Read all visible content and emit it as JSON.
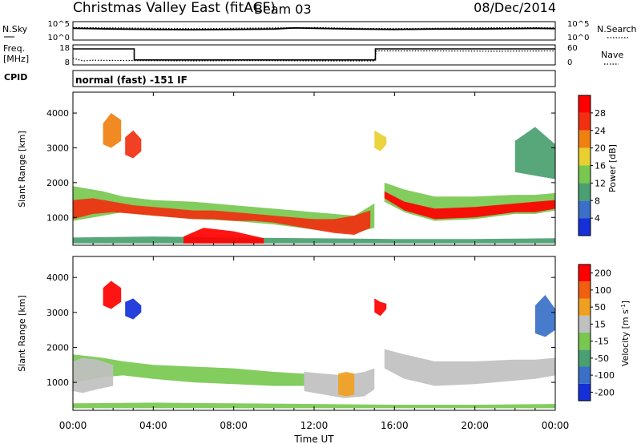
{
  "header": {
    "title": "Christmas Valley East (fitACF)",
    "beam": "Beam 03",
    "date": "08/Dec/2014"
  },
  "chart_data": [
    {
      "type": "line",
      "name": "noise",
      "left_label": "N.Sky",
      "right_label": "N.Search",
      "left_ticks": [
        "10^5",
        "10^0"
      ],
      "right_ticks": [
        "10^5",
        "10^0"
      ],
      "series": [
        {
          "name": "N.Sky",
          "style": "solid",
          "x": [
            0,
            1,
            2,
            4,
            6,
            8,
            10,
            11,
            12,
            14,
            16,
            18,
            20,
            22,
            23,
            24
          ],
          "values": [
            3.2,
            3.1,
            3.0,
            2.9,
            2.8,
            2.9,
            3.0,
            3.3,
            3.2,
            3.0,
            2.9,
            3.0,
            3.0,
            3.1,
            3.2,
            3.1
          ]
        },
        {
          "name": "N.Search",
          "style": "dotted",
          "x": [
            0,
            2,
            4,
            6,
            8,
            10,
            12,
            14,
            16,
            18,
            20,
            22,
            24
          ],
          "values": [
            3.4,
            3.3,
            3.2,
            3.1,
            3.2,
            3.3,
            3.4,
            3.2,
            3.1,
            3.2,
            3.3,
            3.4,
            3.3
          ]
        }
      ]
    },
    {
      "type": "line",
      "name": "frequency-nave",
      "left_label": "Freq. [MHz]",
      "right_label": "Nave",
      "left_ticks": [
        "18",
        "8"
      ],
      "right_ticks": [
        "60",
        "0"
      ],
      "series": [
        {
          "name": "Freq.",
          "style": "solid",
          "x": [
            0,
            3.05,
            3.05,
            15.05,
            15.05,
            24
          ],
          "values": [
            16,
            16,
            10.5,
            10.5,
            16,
            16
          ]
        },
        {
          "name": "Nave",
          "style": "dotted",
          "x": [
            0,
            0.5,
            1,
            3,
            6,
            9,
            12,
            15,
            15.1,
            18,
            21,
            24
          ],
          "values": [
            20,
            12,
            14,
            13,
            12,
            13,
            12,
            12,
            42,
            42,
            41,
            42
          ]
        }
      ]
    },
    {
      "type": "table",
      "name": "cpid",
      "label": "CPID",
      "text": "normal (fast) -151 IF"
    },
    {
      "type": "heatmap",
      "name": "power",
      "ylabel": "Slant Range [km]",
      "yticks": [
        1000,
        2000,
        3000,
        4000
      ],
      "ylim": [
        200,
        4600
      ],
      "colorbar_label": "Power [dB]",
      "colorbar_ticks": [
        "4",
        "8",
        "12",
        "16",
        "20",
        "24",
        "28"
      ],
      "colors": [
        "#1530d8",
        "#3a70c8",
        "#4aa070",
        "#78c850",
        "#e8d030",
        "#f08010",
        "#f03010",
        "#ff0000"
      ],
      "bands": [
        {
          "x": [
            0,
            1.5,
            2.5,
            4,
            6,
            8,
            10,
            12,
            14,
            15
          ],
          "low": [
            900,
            1050,
            1150,
            1050,
            950,
            900,
            800,
            650,
            550,
            700
          ],
          "high": [
            1900,
            1750,
            1600,
            1500,
            1450,
            1350,
            1250,
            1150,
            1050,
            1400
          ],
          "level": 3
        },
        {
          "x": [
            0,
            1,
            2,
            3,
            4,
            5,
            6,
            7,
            8,
            9,
            10,
            11,
            12,
            13,
            14,
            14.8
          ],
          "low": [
            950,
            1100,
            1150,
            1100,
            1050,
            1000,
            950,
            950,
            900,
            900,
            850,
            750,
            650,
            550,
            500,
            700
          ],
          "high": [
            1500,
            1550,
            1450,
            1350,
            1300,
            1250,
            1200,
            1200,
            1150,
            1100,
            1050,
            1000,
            950,
            950,
            1050,
            1200
          ],
          "level": 6
        },
        {
          "x": [
            15.5,
            16.5,
            18,
            20,
            22,
            23,
            24
          ],
          "low": [
            1450,
            1150,
            900,
            950,
            1100,
            1100,
            1200
          ],
          "high": [
            2000,
            1800,
            1600,
            1600,
            1650,
            1650,
            1700
          ],
          "level": 3
        },
        {
          "x": [
            15.5,
            16.5,
            18,
            20,
            22,
            23,
            24
          ],
          "low": [
            1550,
            1200,
            950,
            1000,
            1150,
            1150,
            1250
          ],
          "high": [
            1750,
            1450,
            1250,
            1300,
            1400,
            1450,
            1500
          ],
          "level": 7
        },
        {
          "x": [
            2.6,
            3.0,
            3.4
          ],
          "low": [
            2800,
            2700,
            2900
          ],
          "high": [
            3300,
            3500,
            3250
          ],
          "level": 6
        },
        {
          "x": [
            1.5,
            1.9,
            2.4
          ],
          "low": [
            3100,
            3000,
            3200
          ],
          "high": [
            3700,
            4000,
            3800
          ],
          "level": 5
        },
        {
          "x": [
            15.0,
            15.3,
            15.6
          ],
          "low": [
            3000,
            2900,
            3100
          ],
          "high": [
            3500,
            3400,
            3300
          ],
          "level": 4
        },
        {
          "x": [
            22,
            23,
            24
          ],
          "low": [
            2300,
            2200,
            2100
          ],
          "high": [
            3200,
            3600,
            3100
          ],
          "level": 2
        },
        {
          "x": [
            0,
            4,
            8,
            12,
            16,
            20,
            24
          ],
          "low": [
            250,
            250,
            250,
            250,
            250,
            250,
            250
          ],
          "high": [
            420,
            450,
            420,
            400,
            380,
            380,
            400
          ],
          "level": 2
        },
        {
          "x": [
            5.5,
            6.5,
            8,
            9.5
          ],
          "low": [
            250,
            250,
            250,
            250
          ],
          "high": [
            450,
            700,
            600,
            400
          ],
          "level": 7
        }
      ]
    },
    {
      "type": "heatmap",
      "name": "velocity",
      "ylabel": "Slant Range [km]",
      "yticks": [
        1000,
        2000,
        3000,
        4000
      ],
      "ylim": [
        200,
        4600
      ],
      "colorbar_label": "Velocity [m s^-1]",
      "colorbar_ticks": [
        "200",
        "100",
        "50",
        "15",
        "-15",
        "-50",
        "-100",
        "-200"
      ],
      "colors": [
        "#1530d8",
        "#3a70c8",
        "#4aa070",
        "#78c850",
        "#c0c0c0",
        "#f0a020",
        "#f06010",
        "#ff0000"
      ],
      "bands": [
        {
          "x": [
            0,
            1.5,
            2.5,
            4,
            6,
            8,
            10,
            11.5
          ],
          "low": [
            1000,
            1150,
            1200,
            1100,
            1000,
            950,
            900,
            900
          ],
          "high": [
            1800,
            1700,
            1600,
            1500,
            1450,
            1400,
            1300,
            1250
          ],
          "level": 3
        },
        {
          "x": [
            0,
            0.5,
            1.2,
            2
          ],
          "low": [
            750,
            700,
            800,
            900
          ],
          "high": [
            1600,
            1700,
            1650,
            1500
          ],
          "level": 4
        },
        {
          "x": [
            11.5,
            12.5,
            13.5,
            14.5,
            15
          ],
          "low": [
            750,
            650,
            550,
            600,
            800
          ],
          "high": [
            1300,
            1250,
            1200,
            1300,
            1400
          ],
          "level": 4
        },
        {
          "x": [
            13.2,
            13.6,
            14.0
          ],
          "low": [
            650,
            600,
            650
          ],
          "high": [
            1250,
            1300,
            1250
          ],
          "level": 5
        },
        {
          "x": [
            15.5,
            16.5,
            18,
            20,
            22,
            23,
            24
          ],
          "low": [
            1400,
            1100,
            900,
            950,
            1050,
            1100,
            1200
          ],
          "high": [
            1950,
            1800,
            1600,
            1600,
            1650,
            1650,
            1700
          ],
          "level": 4
        },
        {
          "x": [
            2.6,
            3.0,
            3.4
          ],
          "low": [
            2900,
            2800,
            3000
          ],
          "high": [
            3300,
            3400,
            3200
          ],
          "level": 0
        },
        {
          "x": [
            1.5,
            1.9,
            2.4
          ],
          "low": [
            3200,
            3100,
            3300
          ],
          "high": [
            3700,
            3900,
            3700
          ],
          "level": 7
        },
        {
          "x": [
            15.0,
            15.3,
            15.6
          ],
          "low": [
            3000,
            2900,
            3100
          ],
          "high": [
            3400,
            3300,
            3250
          ],
          "level": 7
        },
        {
          "x": [
            23,
            23.5,
            24
          ],
          "low": [
            2400,
            2300,
            2500
          ],
          "high": [
            3200,
            3500,
            3100
          ],
          "level": 1
        },
        {
          "x": [
            0,
            4,
            8,
            12,
            16,
            20,
            24
          ],
          "low": [
            260,
            260,
            260,
            260,
            260,
            260,
            260
          ],
          "high": [
            400,
            420,
            400,
            380,
            360,
            360,
            380
          ],
          "level": 3
        }
      ]
    }
  ],
  "xaxis": {
    "label": "Time UT",
    "ticks": [
      "00:00",
      "04:00",
      "08:00",
      "12:00",
      "16:00",
      "20:00",
      "00:00"
    ],
    "xlim": [
      0,
      24
    ]
  }
}
